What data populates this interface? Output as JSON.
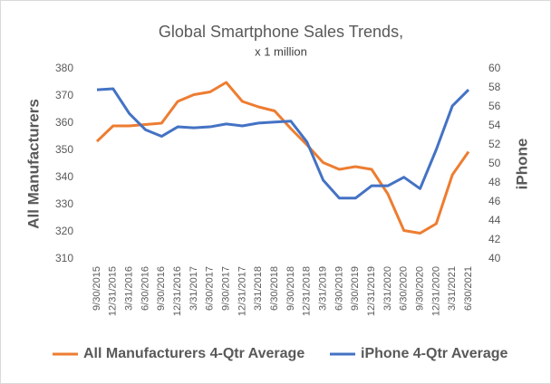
{
  "chart_data": {
    "type": "line",
    "title": "Global Smartphone  Sales Trends,",
    "subtitle": "x 1 million",
    "y_label": "All Manufacturers",
    "y2_label": "iPhone",
    "categories": [
      "9/30/2015",
      "12/31/2015",
      "3/31/2016",
      "6/30/2016",
      "9/30/2016",
      "12/31/2016",
      "3/31/2017",
      "6/30/2017",
      "9/30/2017",
      "12/31/2017",
      "3/31/2018",
      "6/30/2018",
      "9/30/2018",
      "12/31/2018",
      "3/31/2019",
      "6/30/2019",
      "9/30/2019",
      "12/31/2019",
      "3/31/2020",
      "6/30/2020",
      "9/30/2020",
      "12/31/2020",
      "3/31/2021",
      "6/30/2021"
    ],
    "series": [
      {
        "name": "All Manufacturers 4-Qtr Average",
        "color": "#ed7d31",
        "axis": "y",
        "values": [
          353.3,
          359,
          359,
          359.5,
          360,
          368,
          370.5,
          371.5,
          375,
          368,
          366,
          364.5,
          358,
          352,
          345.5,
          343,
          344,
          343,
          334,
          320.5,
          319.5,
          323,
          341,
          349.5
        ]
      },
      {
        "name": "iPhone 4-Qtr Average",
        "color": "#4472c4",
        "axis": "y2",
        "values": [
          57.8,
          57.9,
          55.3,
          53.6,
          52.9,
          53.9,
          53.8,
          53.9,
          54.2,
          54.0,
          54.3,
          54.4,
          54.5,
          52.3,
          48.3,
          46.4,
          46.4,
          47.7,
          47.7,
          48.6,
          47.4,
          51.5,
          56.1,
          57.8
        ]
      }
    ],
    "ylim": [
      310,
      380
    ],
    "yticks": [
      310,
      320,
      330,
      340,
      350,
      360,
      370,
      380
    ],
    "y2lim": [
      40,
      60
    ],
    "y2ticks": [
      40,
      42,
      44,
      46,
      48,
      50,
      52,
      54,
      56,
      58,
      60
    ],
    "legend": "bottom"
  }
}
